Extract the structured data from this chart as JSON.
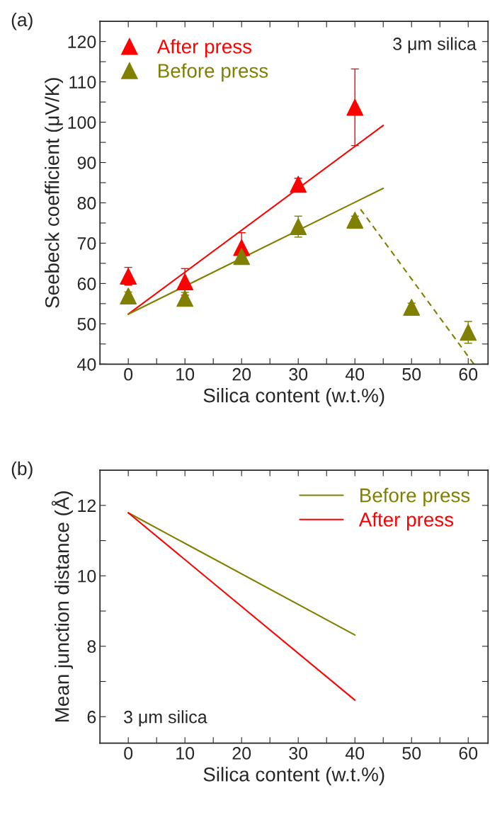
{
  "chart_data": [
    {
      "type": "scatter",
      "xlabel": "Silica content (w.t.%)",
      "ylabel": "Seebeck coefficient (μV/K)",
      "annotations": [
        "(a)",
        "3 μm silica"
      ],
      "series": [
        {
          "name": "After press",
          "color": "#ff0000",
          "marker": "triangle",
          "x": [
            0,
            10,
            20,
            30,
            40
          ],
          "values": [
            61.8,
            60.4,
            68.9,
            84.6,
            103.7
          ],
          "errors": [
            2.2,
            3.3,
            3.7,
            1.5,
            9.5
          ]
        },
        {
          "name": "Before press",
          "color": "#808000",
          "marker": "triangle",
          "x": [
            0,
            10,
            20,
            30,
            40,
            50,
            60
          ],
          "values": [
            56.9,
            56.3,
            66.7,
            74.1,
            75.7,
            54.1,
            47.9
          ],
          "errors": [
            1.0,
            1.5,
            1.0,
            2.6,
            1.0,
            1.0,
            2.7
          ]
        },
        {
          "type": "line",
          "color": "#ff0000",
          "x": [
            0,
            45
          ],
          "values": [
            52.4,
            99.2
          ],
          "line_style": "solid",
          "marker": "none"
        },
        {
          "type": "line",
          "color": "#808000",
          "x": [
            0,
            45
          ],
          "values": [
            52.4,
            83.6
          ],
          "line_style": "solid",
          "marker": "none"
        },
        {
          "type": "line",
          "color": "#808000",
          "x": [
            41,
            61
          ],
          "values": [
            78.4,
            40
          ],
          "line_style": "dashed",
          "marker": "none"
        }
      ],
      "xlim": [
        -5,
        63.5
      ],
      "ylim": [
        40,
        125
      ],
      "xticks": [
        0,
        {
          "value": 5,
          "label": null
        },
        10,
        {
          "value": 15,
          "label": null
        },
        20,
        {
          "value": 25,
          "label": null
        },
        30,
        {
          "value": 35,
          "label": null
        },
        40,
        {
          "value": 45,
          "label": null
        },
        50,
        {
          "value": 55,
          "label": null
        },
        60
      ],
      "yticks": [
        40,
        {
          "value": 45,
          "label": null
        },
        50,
        {
          "value": 55,
          "label": null
        },
        60,
        {
          "value": 65,
          "label": null
        },
        70,
        {
          "value": 75,
          "label": null
        },
        80,
        {
          "value": 85,
          "label": null
        },
        90,
        {
          "value": 95,
          "label": null
        },
        100,
        {
          "value": 105,
          "label": null
        },
        110,
        {
          "value": 115,
          "label": null
        },
        120
      ],
      "legend": "top left",
      "grid": false
    },
    {
      "type": "line",
      "xlabel": "Silica content (w.t.%)",
      "ylabel": "Mean junction distance (Å)",
      "annotations": [
        "(b)",
        "3 μm silica"
      ],
      "series": [
        {
          "name": "Before press",
          "color": "#808000",
          "x": [
            0,
            40
          ],
          "values": [
            11.79,
            8.32
          ]
        },
        {
          "name": "After press",
          "color": "#ff0000",
          "x": [
            0,
            40
          ],
          "values": [
            11.79,
            6.47
          ]
        }
      ],
      "line_style": "solid",
      "marker": "none",
      "xlim": [
        -5,
        63.5
      ],
      "ylim": [
        5.25,
        13
      ],
      "xticks": [
        0,
        {
          "value": 5,
          "label": null
        },
        10,
        {
          "value": 15,
          "label": null
        },
        20,
        {
          "value": 25,
          "label": null
        },
        30,
        {
          "value": 35,
          "label": null
        },
        40,
        {
          "value": 45,
          "label": null
        },
        50,
        {
          "value": 55,
          "label": null
        },
        60
      ],
      "yticks": [
        6,
        {
          "value": 7,
          "label": null
        },
        8,
        {
          "value": 9,
          "label": null
        },
        10,
        {
          "value": 11,
          "label": null
        },
        12
      ],
      "legend": "top right",
      "grid": false
    }
  ]
}
